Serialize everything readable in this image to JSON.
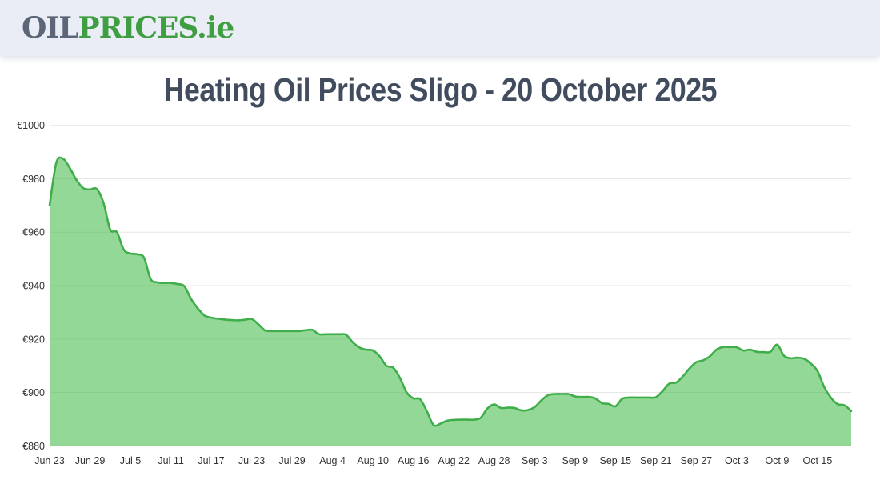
{
  "header": {
    "logo": {
      "part_oil": "OIL",
      "part_prices": "PRICES",
      "part_tld": ".ie"
    }
  },
  "title": "Heating Oil Prices Sligo - 20 October 2025",
  "chart_data": {
    "type": "area",
    "title": "Heating Oil Prices Sligo - 20 October 2025",
    "xlabel": "",
    "ylabel": "",
    "ylim": [
      880,
      1000
    ],
    "grid": "horizontal",
    "legend_position": "none",
    "currency": "EUR",
    "y_tick_values": [
      1000,
      980,
      960,
      940,
      920,
      900,
      880
    ],
    "y_tick_labels": [
      "€1000",
      "€980",
      "€960",
      "€940",
      "€920",
      "€900",
      "€880"
    ],
    "x_tick_positions": [
      0,
      6,
      12,
      18,
      24,
      30,
      36,
      42,
      48,
      54,
      60,
      66,
      72,
      78,
      84,
      90,
      96,
      102,
      108,
      114
    ],
    "x_tick_labels": [
      "Jun 23",
      "Jun 29",
      "Jul 5",
      "Jul 11",
      "Jul 17",
      "Jul 23",
      "Jul 29",
      "Aug 4",
      "Aug 10",
      "Aug 16",
      "Aug 22",
      "Aug 28",
      "Sep 3",
      "Sep 9",
      "Sep 15",
      "Sep 21",
      "Sep 27",
      "Oct 3",
      "Oct 9",
      "Oct 15"
    ],
    "dates": [
      "Jun 23",
      "Jun 24",
      "Jun 25",
      "Jun 26",
      "Jun 27",
      "Jun 28",
      "Jun 29",
      "Jun 30",
      "Jul 1",
      "Jul 2",
      "Jul 3",
      "Jul 4",
      "Jul 5",
      "Jul 6",
      "Jul 7",
      "Jul 8",
      "Jul 9",
      "Jul 10",
      "Jul 11",
      "Jul 12",
      "Jul 13",
      "Jul 14",
      "Jul 15",
      "Jul 16",
      "Jul 17",
      "Jul 18",
      "Jul 19",
      "Jul 20",
      "Jul 21",
      "Jul 22",
      "Jul 23",
      "Jul 24",
      "Jul 25",
      "Jul 26",
      "Jul 27",
      "Jul 28",
      "Jul 29",
      "Jul 30",
      "Jul 31",
      "Aug 1",
      "Aug 2",
      "Aug 3",
      "Aug 4",
      "Aug 5",
      "Aug 6",
      "Aug 7",
      "Aug 8",
      "Aug 9",
      "Aug 10",
      "Aug 11",
      "Aug 12",
      "Aug 13",
      "Aug 14",
      "Aug 15",
      "Aug 16",
      "Aug 17",
      "Aug 18",
      "Aug 19",
      "Aug 20",
      "Aug 21",
      "Aug 22",
      "Aug 23",
      "Aug 24",
      "Aug 25",
      "Aug 26",
      "Aug 27",
      "Aug 28",
      "Aug 29",
      "Aug 30",
      "Aug 31",
      "Sep 1",
      "Sep 2",
      "Sep 3",
      "Sep 4",
      "Sep 5",
      "Sep 6",
      "Sep 7",
      "Sep 8",
      "Sep 9",
      "Sep 10",
      "Sep 11",
      "Sep 12",
      "Sep 13",
      "Sep 14",
      "Sep 15",
      "Sep 16",
      "Sep 17",
      "Sep 18",
      "Sep 19",
      "Sep 20",
      "Sep 21",
      "Sep 22",
      "Sep 23",
      "Sep 24",
      "Sep 25",
      "Sep 26",
      "Sep 27",
      "Sep 28",
      "Sep 29",
      "Sep 30",
      "Oct 1",
      "Oct 2",
      "Oct 3",
      "Oct 4",
      "Oct 5",
      "Oct 6",
      "Oct 7",
      "Oct 8",
      "Oct 9",
      "Oct 10",
      "Oct 11",
      "Oct 12",
      "Oct 13",
      "Oct 14",
      "Oct 15",
      "Oct 16",
      "Oct 17",
      "Oct 18",
      "Oct 19",
      "Oct 20"
    ],
    "values": [
      970,
      986,
      987.5,
      984,
      979.5,
      976.5,
      976,
      976.2,
      971,
      961,
      960,
      953.5,
      952,
      951.7,
      950.5,
      942.5,
      941.2,
      941,
      941,
      940.6,
      939.8,
      935,
      931.5,
      928.8,
      928,
      927.6,
      927.3,
      927.1,
      927,
      927.2,
      927.5,
      925.5,
      923.2,
      923,
      923,
      923,
      923,
      923,
      923.3,
      923.4,
      921.8,
      921.8,
      921.8,
      921.8,
      921.6,
      918.8,
      916.8,
      916,
      915.7,
      913.5,
      910,
      909.3,
      905.5,
      900,
      897.8,
      897.5,
      893,
      887.8,
      888.3,
      889.4,
      889.7,
      889.8,
      889.8,
      889.8,
      890.5,
      894,
      895.5,
      894.2,
      894.3,
      894.2,
      893.3,
      893.4,
      894.5,
      897,
      899,
      899.4,
      899.4,
      899.4,
      898.5,
      898.3,
      898.3,
      897.8,
      896,
      895.7,
      894.8,
      897.6,
      898.1,
      898.1,
      898.1,
      898.1,
      898.2,
      900.5,
      903.3,
      903.7,
      906,
      909,
      911.3,
      912,
      913.5,
      916,
      917,
      917,
      916.9,
      915.7,
      916,
      915.2,
      915.1,
      915.2,
      917.9,
      913.8,
      912.8,
      913,
      912.6,
      910.8,
      908,
      902,
      898,
      895.6,
      895.2,
      893
    ],
    "colors": {
      "line": "#3fae4a",
      "fill": "rgba(59,184,66,0.55)",
      "grid": "#e6e6e6",
      "tick_text": "#333333"
    }
  }
}
